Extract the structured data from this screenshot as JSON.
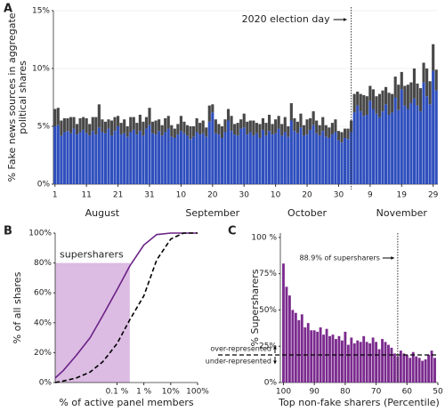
{
  "chart_data": [
    {
      "panel": "A",
      "type": "stacked-bar",
      "ylabel": [
        "% Fake news sources in aggregate",
        "political shares"
      ],
      "categories": [
        "1",
        null,
        null,
        null,
        null,
        null,
        null,
        null,
        null,
        null,
        "11",
        null,
        null,
        null,
        null,
        null,
        null,
        null,
        null,
        null,
        "21",
        null,
        null,
        null,
        null,
        null,
        null,
        null,
        null,
        null,
        "31",
        null,
        null,
        null,
        null,
        null,
        null,
        null,
        null,
        null,
        "10",
        null,
        null,
        null,
        null,
        null,
        null,
        null,
        null,
        null,
        "20",
        null,
        null,
        null,
        null,
        null,
        null,
        null,
        null,
        null,
        "30",
        null,
        null,
        null,
        null,
        null,
        null,
        null,
        null,
        null,
        "10",
        null,
        null,
        null,
        null,
        null,
        null,
        null,
        null,
        null,
        "20",
        null,
        null,
        null,
        null,
        null,
        null,
        null,
        null,
        null,
        "30",
        null,
        null,
        null,
        null,
        null,
        null,
        null,
        null,
        null,
        "9",
        null,
        null,
        null,
        null,
        null,
        null,
        null,
        null,
        null,
        "19",
        null,
        null,
        null,
        null,
        null,
        null,
        null,
        null,
        null,
        "29",
        null
      ],
      "month_labels": [
        "August",
        "September",
        "October",
        "November"
      ],
      "series": [
        {
          "color": "#2f4fbd",
          "values": [
            5.0,
            5.1,
            4.2,
            4.5,
            4.6,
            4.4,
            4.8,
            4.3,
            4.5,
            4.7,
            4.4,
            4.2,
            4.6,
            4.3,
            4.9,
            4.5,
            4.4,
            4.8,
            4.2,
            4.6,
            5.0,
            4.3,
            4.4,
            4.1,
            4.5,
            4.7,
            4.3,
            4.6,
            4.2,
            4.8,
            5.1,
            4.4,
            4.3,
            4.6,
            4.2,
            4.5,
            4.8,
            4.1,
            4.0,
            4.3,
            4.6,
            4.4,
            4.2,
            3.9,
            4.1,
            4.5,
            4.3,
            4.4,
            4.1,
            5.4,
            6.2,
            4.4,
            4.3,
            4.0,
            4.5,
            5.5,
            4.6,
            4.3,
            4.2,
            4.8,
            4.9,
            4.3,
            4.5,
            4.2,
            4.4,
            4.0,
            4.7,
            4.2,
            4.6,
            4.3,
            4.4,
            4.8,
            4.2,
            4.5,
            4.1,
            5.5,
            4.6,
            4.4,
            4.9,
            4.2,
            4.3,
            4.7,
            5.1,
            4.4,
            4.2,
            4.6,
            4.1,
            4.0,
            4.3,
            4.5,
            3.8,
            3.6,
            4.0,
            3.9,
            4.5,
            6.2,
            6.8,
            6.3,
            5.9,
            6.0,
            7.2,
            6.5,
            6.1,
            5.8,
            6.3,
            6.9,
            6.0,
            6.2,
            7.5,
            6.4,
            8.2,
            6.8,
            6.5,
            7.0,
            7.4,
            6.8,
            6.3,
            8.8,
            7.6,
            6.9,
            9.8,
            8.1
          ]
        },
        {
          "color": "#484848",
          "values": [
            1.5,
            1.5,
            1.3,
            1.2,
            1.1,
            1.4,
            1.0,
            0.9,
            1.2,
            1.1,
            1.3,
            1.0,
            1.2,
            1.5,
            2.0,
            1.1,
            1.0,
            0.8,
            1.3,
            1.2,
            0.9,
            1.0,
            1.2,
            0.9,
            1.3,
            1.1,
            1.0,
            1.4,
            1.2,
            1.0,
            1.5,
            1.0,
            1.2,
            1.0,
            0.9,
            1.2,
            1.1,
            1.0,
            0.8,
            0.9,
            1.3,
            1.0,
            0.9,
            1.1,
            0.9,
            1.2,
            1.0,
            1.1,
            0.8,
            1.4,
            0.7,
            1.2,
            0.9,
            1.0,
            1.1,
            1.0,
            1.3,
            0.9,
            1.1,
            0.8,
            1.2,
            1.1,
            1.0,
            1.3,
            0.9,
            1.2,
            1.0,
            1.1,
            1.4,
            0.9,
            1.2,
            1.1,
            1.0,
            1.3,
            0.9,
            1.5,
            1.1,
            1.0,
            1.2,
            0.9,
            1.3,
            1.0,
            1.2,
            1.1,
            0.9,
            1.2,
            1.0,
            0.9,
            1.0,
            1.1,
            0.8,
            0.9,
            0.8,
            0.9,
            1.0,
            1.6,
            1.2,
            1.5,
            1.8,
            1.6,
            1.3,
            1.7,
            1.5,
            2.0,
            1.8,
            1.5,
            1.9,
            1.6,
            1.8,
            2.2,
            1.5,
            1.7,
            2.1,
            1.8,
            2.6,
            1.9,
            2.0,
            1.7,
            2.4,
            2.0,
            2.3,
            1.8
          ]
        }
      ],
      "ylim": [
        0,
        15
      ],
      "yticks": [
        {
          "value": 0,
          "label": "0%"
        },
        {
          "value": 5,
          "label": "5%"
        },
        {
          "value": 10,
          "label": "10%"
        },
        {
          "value": 15,
          "label": "15%"
        }
      ],
      "grid": true,
      "event": {
        "label": "2020 election day",
        "category_index": 94
      }
    },
    {
      "panel": "B",
      "type": "line",
      "xscale": "log",
      "xlabel": "% of active panel members",
      "ylabel": "% of all shares",
      "x": [
        0.0005,
        0.001,
        0.003,
        0.01,
        0.03,
        0.1,
        0.3,
        1,
        3,
        10,
        30,
        100
      ],
      "series": [
        {
          "color": "#6b2287",
          "style": "solid",
          "values": [
            3,
            8,
            18,
            30,
            45,
            62,
            78,
            92,
            99,
            100,
            100,
            100
          ]
        },
        {
          "color": "#000000",
          "style": "dashed",
          "values": [
            0,
            1,
            3,
            7,
            14,
            26,
            42,
            58,
            82,
            96,
            100,
            100
          ]
        }
      ],
      "xlim": [
        0.0005,
        100
      ],
      "xticks": [
        {
          "value": 0.1,
          "label": "0.1 %"
        },
        {
          "value": 1,
          "label": "1 %"
        },
        {
          "value": 10,
          "label": "10%"
        },
        {
          "value": 100,
          "label": "100%"
        }
      ],
      "ylim": [
        0,
        100
      ],
      "yticks": [
        {
          "value": 0,
          "label": "0%"
        },
        {
          "value": 20,
          "label": "20%"
        },
        {
          "value": 40,
          "label": "40%"
        },
        {
          "value": 60,
          "label": "60%"
        },
        {
          "value": 80,
          "label": "80%"
        },
        {
          "value": 100,
          "label": "100%"
        }
      ],
      "highlight": {
        "label": "supersharers",
        "x": [
          0.0005,
          0.3
        ],
        "top": 80,
        "color": "#d6b0de"
      }
    },
    {
      "panel": "C",
      "type": "bar",
      "xlabel": "Top non-fake sharers (Percentile)",
      "ylabel": "% Supersharers",
      "x": [
        100,
        99,
        98,
        97,
        96,
        95,
        94,
        93,
        92,
        91,
        90,
        89,
        88,
        87,
        86,
        85,
        84,
        83,
        82,
        81,
        80,
        79,
        78,
        77,
        76,
        75,
        74,
        73,
        72,
        71,
        70,
        69,
        68,
        67,
        66,
        65,
        64,
        63,
        62,
        61,
        60,
        59,
        58,
        57,
        56,
        55,
        54,
        53,
        52,
        51
      ],
      "values": [
        82,
        66,
        60,
        50,
        48,
        43,
        47,
        38,
        41,
        36,
        36,
        35,
        38,
        33,
        37,
        32,
        33,
        30,
        32,
        29,
        35,
        26,
        31,
        27,
        29,
        28,
        32,
        28,
        27,
        31,
        28,
        23,
        30,
        28,
        26,
        24,
        20,
        18,
        22,
        20,
        19,
        17,
        21,
        18,
        17,
        15,
        16,
        19,
        22,
        17
      ],
      "color": "#7b2a8e",
      "xlim": [
        101,
        50
      ],
      "xticks": [
        100,
        90,
        80,
        70,
        60,
        50
      ],
      "ylim": [
        0,
        103
      ],
      "yticks": [
        {
          "value": 0,
          "label": "0%"
        },
        {
          "value": 25,
          "label": "25%"
        },
        {
          "value": 50,
          "label": "50%"
        },
        {
          "value": 75,
          "label": "75%"
        },
        {
          "value": 100,
          "label": "100 %"
        }
      ],
      "reference": {
        "value": 19,
        "labels": [
          "over-represented",
          "under-represented"
        ]
      },
      "marker": {
        "x": 63,
        "label": "88.9% of supersharers"
      }
    }
  ]
}
